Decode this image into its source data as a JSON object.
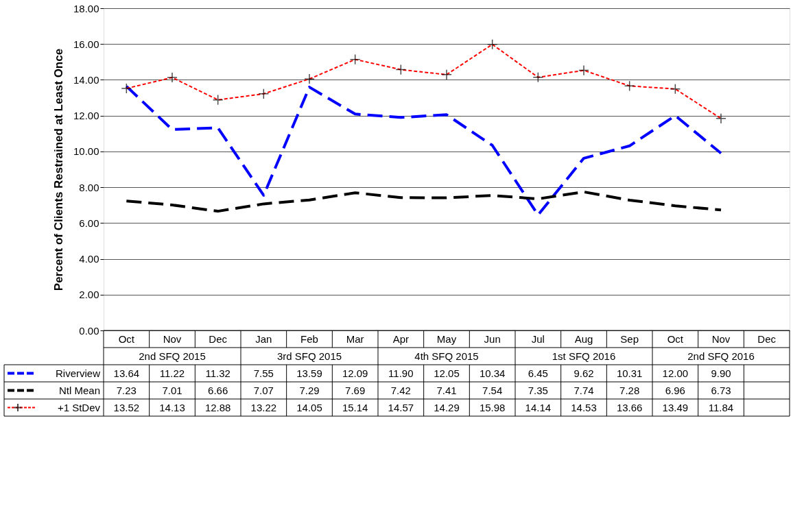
{
  "chart_data": {
    "type": "line",
    "ylabel": "Percent of Clients Restrained at Least Once",
    "categories": [
      "Oct",
      "Nov",
      "Dec",
      "Jan",
      "Feb",
      "Mar",
      "Apr",
      "May",
      "Jun",
      "Jul",
      "Aug",
      "Sep",
      "Oct",
      "Nov",
      "Dec"
    ],
    "annotations": [
      "2nd SFQ 2015",
      "3rd SFQ 2015",
      "4th SFQ 2015",
      "1st SFQ 2016",
      "2nd SFQ 2016"
    ],
    "series": [
      {
        "name": "Riverview",
        "color": "#0000ff",
        "line_style": "dashed",
        "marker": "none",
        "values": [
          13.64,
          11.22,
          11.32,
          7.55,
          13.59,
          12.09,
          11.9,
          12.05,
          10.34,
          6.45,
          9.62,
          10.31,
          12.0,
          9.9,
          null
        ],
        "value_labels": [
          "13.64",
          "11.22",
          "11.32",
          "7.55",
          "13.59",
          "12.09",
          "11.90",
          "12.05",
          "10.34",
          "6.45",
          "9.62",
          "10.31",
          "12.00",
          "9.90",
          null
        ]
      },
      {
        "name": "Ntl Mean",
        "color": "#000000",
        "line_style": "dashed",
        "marker": "none",
        "values": [
          7.23,
          7.01,
          6.66,
          7.07,
          7.29,
          7.69,
          7.42,
          7.41,
          7.54,
          7.35,
          7.74,
          7.28,
          6.96,
          6.73,
          null
        ],
        "value_labels": [
          "7.23",
          "7.01",
          "6.66",
          "7.07",
          "7.29",
          "7.69",
          "7.42",
          "7.41",
          "7.54",
          "7.35",
          "7.74",
          "7.28",
          "6.96",
          "6.73",
          null
        ]
      },
      {
        "name": "+1 StDev",
        "color": "#ff0000",
        "line_style": "dotted",
        "marker": "cross",
        "values": [
          13.52,
          14.13,
          12.88,
          13.22,
          14.05,
          15.14,
          14.57,
          14.29,
          15.98,
          14.14,
          14.53,
          13.66,
          13.49,
          11.84,
          null
        ],
        "value_labels": [
          "13.52",
          "14.13",
          "12.88",
          "13.22",
          "14.05",
          "15.14",
          "14.57",
          "14.29",
          "15.98",
          "14.14",
          "14.53",
          "13.66",
          "13.49",
          "11.84",
          null
        ]
      }
    ],
    "ylim": [
      0,
      18
    ],
    "yticks": [
      {
        "value": 0,
        "label": "0.00"
      },
      {
        "value": 2,
        "label": "2.00"
      },
      {
        "value": 4,
        "label": "4.00"
      },
      {
        "value": 6,
        "label": "6.00"
      },
      {
        "value": 8,
        "label": "8.00"
      },
      {
        "value": 10,
        "label": "10.00"
      },
      {
        "value": 12,
        "label": "12.00"
      },
      {
        "value": 14,
        "label": "14.00"
      },
      {
        "value": 16,
        "label": "16.00"
      },
      {
        "value": 18,
        "label": "18.00"
      }
    ],
    "grid": "y",
    "legend": "bottom"
  }
}
